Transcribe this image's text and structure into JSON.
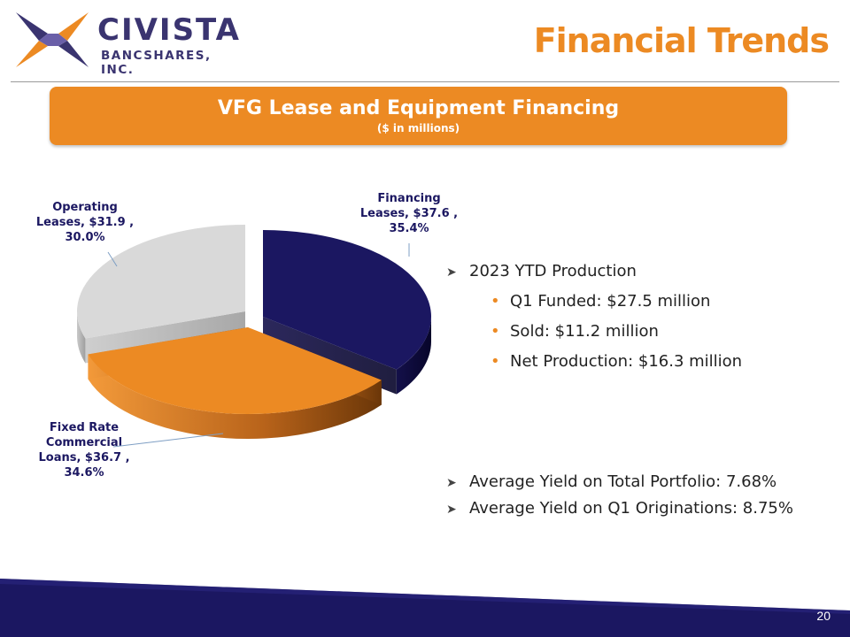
{
  "brand": {
    "name": "CIVISTA",
    "subtitle": "BANCSHARES, INC.",
    "colors": {
      "navy": "#1b1761",
      "orange": "#ec8a23",
      "gray": "#d9d9d9"
    }
  },
  "header": {
    "title": "Financial Trends"
  },
  "banner": {
    "title": "VFG Lease and Equipment Financing",
    "subtitle": "($ in millions)"
  },
  "chart_data": {
    "type": "pie",
    "style": "3d-exploded",
    "unit": "$ in millions",
    "slices": [
      {
        "name": "Financing Leases",
        "value": 37.6,
        "percent": 35.4,
        "color": "#1b1761",
        "label_lines": [
          "Financing",
          "Leases, $37.6 ,",
          "35.4%"
        ]
      },
      {
        "name": "Fixed Rate Commercial Loans",
        "value": 36.7,
        "percent": 34.6,
        "color": "#ec8a23",
        "label_lines": [
          "Fixed Rate",
          "Commercial",
          "Loans, $36.7 ,",
          "34.6%"
        ]
      },
      {
        "name": "Operating Leases",
        "value": 31.9,
        "percent": 30.0,
        "color": "#d9d9d9",
        "label_lines": [
          "Operating",
          "Leases, $31.9 ,",
          "30.0%"
        ]
      }
    ]
  },
  "bullets": {
    "production_heading": "2023 YTD Production",
    "items": [
      "Q1 Funded: $27.5 million",
      "Sold: $11.2 million",
      "Net Production: $16.3 million"
    ],
    "yield_total": "Average Yield on Total Portfolio: 7.68%",
    "yield_q1": "Average Yield on Q1 Originations: 8.75%"
  },
  "footer": {
    "page_number": "20"
  }
}
